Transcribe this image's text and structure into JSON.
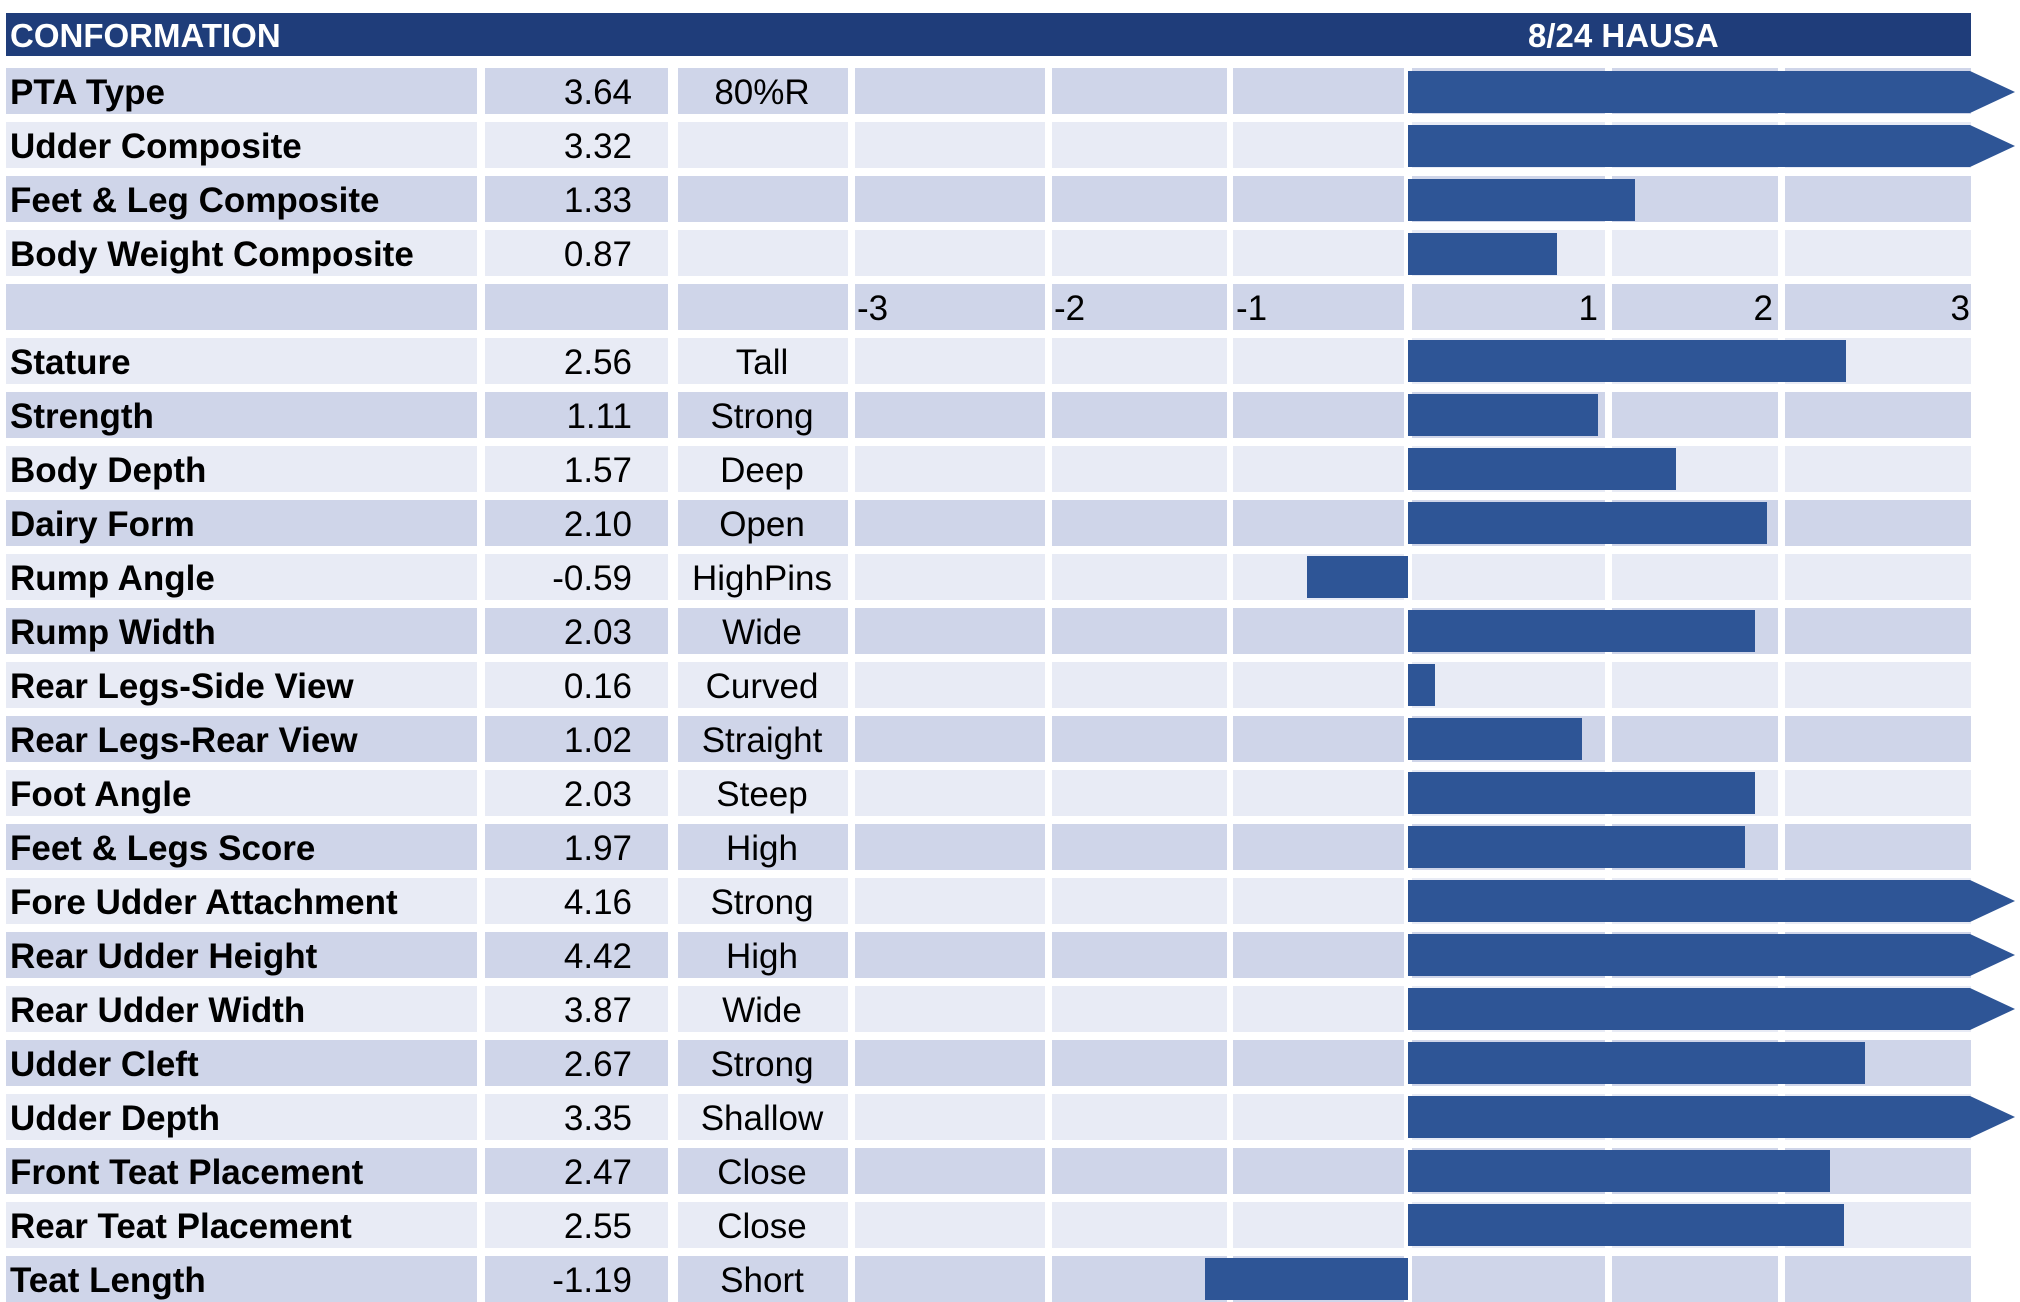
{
  "header": {
    "title": "CONFORMATION",
    "date_label": "8/24 HAUSA"
  },
  "colors": {
    "header_bg": "#1f3d7a",
    "bar": "#2e5596",
    "band_dark": "#cfd5e9",
    "band_light": "#e8ebf5"
  },
  "chart_data": {
    "type": "bar",
    "orientation": "horizontal",
    "title": "CONFORMATION",
    "xlim": [
      -3,
      3
    ],
    "axis_tick_labels": [
      "-3",
      "-2",
      "-1",
      "1",
      "2",
      "3"
    ],
    "composites": [
      {
        "name": "PTA Type",
        "value": 3.64,
        "display": "3.64",
        "note": "80%R"
      },
      {
        "name": "Udder Composite",
        "value": 3.32,
        "display": "3.32",
        "note": ""
      },
      {
        "name": "Feet & Leg Composite",
        "value": 1.33,
        "display": "1.33",
        "note": ""
      },
      {
        "name": "Body Weight Composite",
        "value": 0.87,
        "display": "0.87",
        "note": ""
      }
    ],
    "traits": [
      {
        "name": "Stature",
        "value": 2.56,
        "display": "2.56",
        "descriptor": "Tall"
      },
      {
        "name": "Strength",
        "value": 1.11,
        "display": "1.11",
        "descriptor": "Strong"
      },
      {
        "name": "Body Depth",
        "value": 1.57,
        "display": "1.57",
        "descriptor": "Deep"
      },
      {
        "name": "Dairy Form",
        "value": 2.1,
        "display": "2.10",
        "descriptor": "Open"
      },
      {
        "name": "Rump Angle",
        "value": -0.59,
        "display": "-0.59",
        "descriptor": "HighPins"
      },
      {
        "name": "Rump Width",
        "value": 2.03,
        "display": "2.03",
        "descriptor": "Wide"
      },
      {
        "name": "Rear Legs-Side View",
        "value": 0.16,
        "display": "0.16",
        "descriptor": "Curved"
      },
      {
        "name": "Rear Legs-Rear View",
        "value": 1.02,
        "display": "1.02",
        "descriptor": "Straight"
      },
      {
        "name": "Foot Angle",
        "value": 2.03,
        "display": "2.03",
        "descriptor": "Steep"
      },
      {
        "name": "Feet & Legs Score",
        "value": 1.97,
        "display": "1.97",
        "descriptor": "High"
      },
      {
        "name": "Fore Udder Attachment",
        "value": 4.16,
        "display": "4.16",
        "descriptor": "Strong"
      },
      {
        "name": "Rear Udder Height",
        "value": 4.42,
        "display": "4.42",
        "descriptor": "High"
      },
      {
        "name": "Rear Udder Width",
        "value": 3.87,
        "display": "3.87",
        "descriptor": "Wide"
      },
      {
        "name": "Udder Cleft",
        "value": 2.67,
        "display": "2.67",
        "descriptor": "Strong"
      },
      {
        "name": "Udder Depth",
        "value": 3.35,
        "display": "3.35",
        "descriptor": "Shallow"
      },
      {
        "name": "Front Teat Placement",
        "value": 2.47,
        "display": "2.47",
        "descriptor": "Close"
      },
      {
        "name": "Rear Teat Placement",
        "value": 2.55,
        "display": "2.55",
        "descriptor": "Close"
      },
      {
        "name": "Teat Length",
        "value": -1.19,
        "display": "-1.19",
        "descriptor": "Short"
      }
    ]
  }
}
